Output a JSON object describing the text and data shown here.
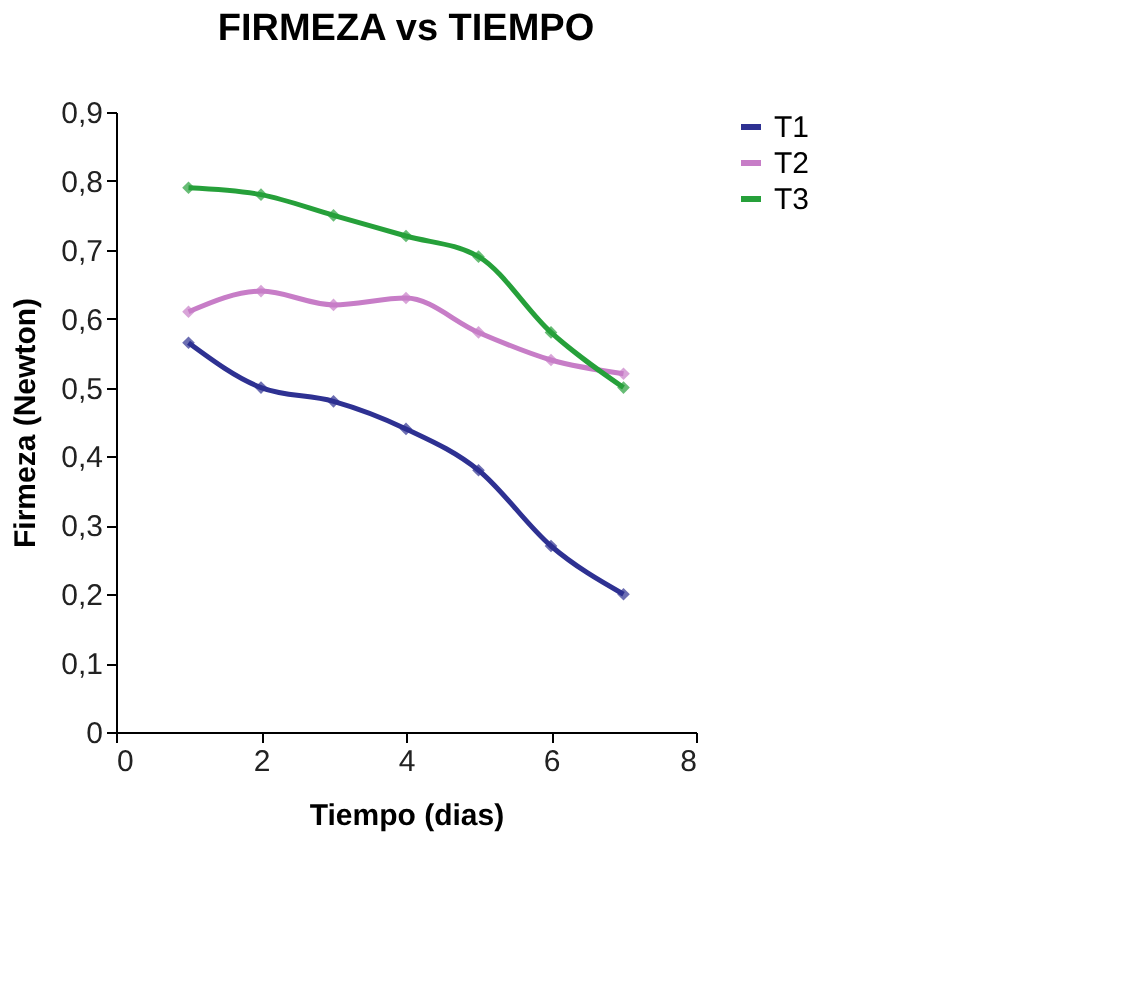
{
  "chart_data": {
    "type": "line",
    "title": "FIRMEZA vs TIEMPO",
    "xlabel": "Tiempo (dias)",
    "ylabel": "Firmeza (Newton)",
    "x": [
      1,
      2,
      3,
      4,
      5,
      6,
      7
    ],
    "series": [
      {
        "name": "T1",
        "color": "#2e3192",
        "values": [
          0.565,
          0.5,
          0.48,
          0.44,
          0.38,
          0.27,
          0.2
        ]
      },
      {
        "name": "T2",
        "color": "#c77dc7",
        "values": [
          0.61,
          0.64,
          0.62,
          0.63,
          0.58,
          0.54,
          0.52
        ]
      },
      {
        "name": "T3",
        "color": "#26a03a",
        "values": [
          0.79,
          0.78,
          0.75,
          0.72,
          0.69,
          0.58,
          0.5
        ]
      }
    ],
    "xlim": [
      0,
      8
    ],
    "xticks": [
      0,
      2,
      4,
      6,
      8
    ],
    "ylim": [
      0,
      0.9
    ],
    "yticks": [
      0,
      {
        "value": 0.1,
        "label": "0,1"
      },
      {
        "value": 0.2,
        "label": "0,2"
      },
      {
        "value": 0.3,
        "label": "0,3"
      },
      {
        "value": 0.4,
        "label": "0,4"
      },
      {
        "value": 0.5,
        "label": "0,5"
      },
      {
        "value": 0.6,
        "label": "0,6"
      },
      {
        "value": 0.7,
        "label": "0,7"
      },
      {
        "value": 0.8,
        "label": "0,8"
      },
      {
        "value": 0.9,
        "label": "0,9"
      }
    ],
    "grid": false,
    "legend": "right",
    "marker": "diamond",
    "line_style": "solid"
  }
}
